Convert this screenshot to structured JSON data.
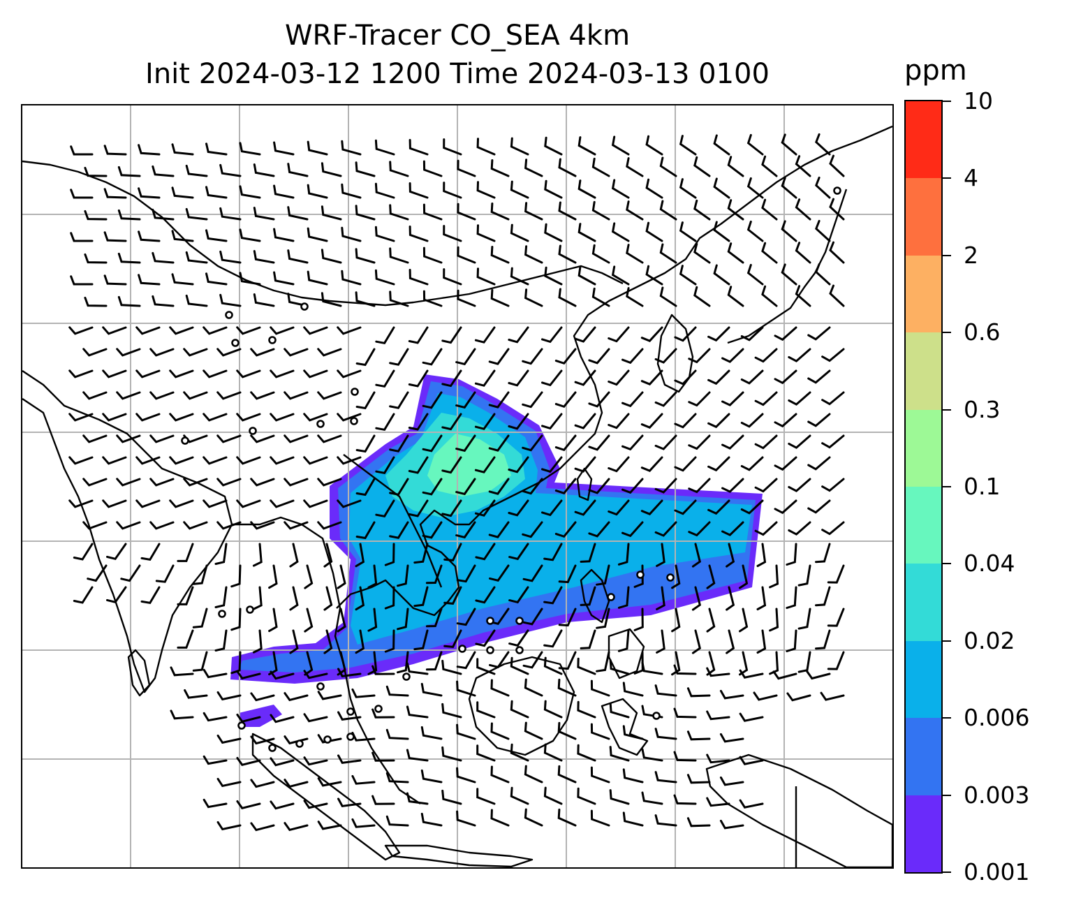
{
  "title": {
    "line1": "WRF-Tracer CO_SEA 4km",
    "line2": "Init 2024-03-12 1200 Time 2024-03-13 0100"
  },
  "colorbar": {
    "units": "ppm",
    "tick_labels": [
      "0.001",
      "0.003",
      "0.006",
      "0.02",
      "0.04",
      "0.1",
      "0.3",
      "0.6",
      "2",
      "4",
      "10"
    ],
    "bands": [
      {
        "range": "0.001–0.003",
        "color": "#6a2bfa"
      },
      {
        "range": "0.003–0.006",
        "color": "#3374f2"
      },
      {
        "range": "0.006–0.02",
        "color": "#0ab0ea"
      },
      {
        "range": "0.02–0.04",
        "color": "#33dbd7"
      },
      {
        "range": "0.04–0.1",
        "color": "#67f7be"
      },
      {
        "range": "0.1–0.3",
        "color": "#9df996"
      },
      {
        "range": "0.3–0.6",
        "color": "#cde08a"
      },
      {
        "range": "0.6–2",
        "color": "#fdb062"
      },
      {
        "range": "2–4",
        "color": "#fe703e"
      },
      {
        "range": "4–10",
        "color": "#ff2b17"
      }
    ]
  },
  "map": {
    "projection": "regional (Southeast / East Asia)",
    "gridlines": true,
    "gridline_color": "#b3b3b3",
    "coastline_color": "#000000",
    "wind_symbol": "wind-barbs",
    "tracer": "CO_SEA",
    "plume_description": "tracer plume over Indochina and the South China Sea extending east toward the Philippines"
  }
}
